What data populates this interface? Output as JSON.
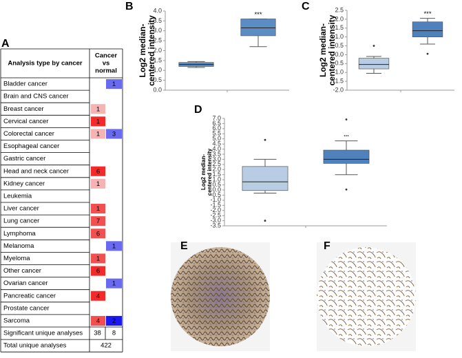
{
  "panel_labels": [
    "A",
    "B",
    "C",
    "D",
    "E",
    "F"
  ],
  "table": {
    "header": {
      "title": "Analysis type by cancer",
      "column": [
        "Cancer",
        "vs",
        "normal"
      ]
    },
    "rows": [
      {
        "name": "Bladder cancer",
        "up": null,
        "down": {
          "value": 1,
          "color": "#6a6af0"
        }
      },
      {
        "name": "Brain and CNS cancer",
        "up": null,
        "down": null
      },
      {
        "name": "Breast cancer",
        "up": {
          "value": 1,
          "color": "#f6b3b3"
        },
        "down": null
      },
      {
        "name": "Cervical cancer",
        "up": {
          "value": 1,
          "color": "#f42a2a"
        },
        "down": null
      },
      {
        "name": "Colorectal cancer",
        "up": {
          "value": 1,
          "color": "#f6b3b3"
        },
        "down": {
          "value": 3,
          "color": "#6a6af0"
        }
      },
      {
        "name": "Esophageal cancer",
        "up": null,
        "down": null
      },
      {
        "name": "Gastric cancer",
        "up": null,
        "down": null
      },
      {
        "name": "Head and neck cancer",
        "up": {
          "value": 6,
          "color": "#f42a2a"
        },
        "down": null
      },
      {
        "name": "Kidney cancer",
        "up": {
          "value": 1,
          "color": "#f6b3b3"
        },
        "down": null
      },
      {
        "name": "Leukemia",
        "up": null,
        "down": null
      },
      {
        "name": "Liver cancer",
        "up": {
          "value": 1,
          "color": "#f25050"
        },
        "down": null
      },
      {
        "name": "Lung cancer",
        "up": {
          "value": 7,
          "color": "#f25050"
        },
        "down": null
      },
      {
        "name": "Lymphoma",
        "up": {
          "value": 6,
          "color": "#f25050"
        },
        "down": null
      },
      {
        "name": "Melanoma",
        "up": null,
        "down": {
          "value": 1,
          "color": "#6a6af0"
        }
      },
      {
        "name": "Myeloma",
        "up": {
          "value": 1,
          "color": "#f25050"
        },
        "down": null
      },
      {
        "name": "Other cancer",
        "up": {
          "value": 6,
          "color": "#f42a2a"
        },
        "down": null
      },
      {
        "name": "Ovarian cancer",
        "up": null,
        "down": {
          "value": 1,
          "color": "#6a6af0"
        }
      },
      {
        "name": "Pancreatic cancer",
        "up": {
          "value": 4,
          "color": "#f42a2a"
        },
        "down": null
      },
      {
        "name": "Prostate cancer",
        "up": null,
        "down": null
      },
      {
        "name": "Sarcoma",
        "up": {
          "value": 4,
          "color": "#f25050"
        },
        "down": {
          "value": 2,
          "color": "#1a1af0"
        }
      }
    ],
    "significant": {
      "name": "Significant unique analyses",
      "up": 38,
      "down": 8
    },
    "total": {
      "name": "Total unique analyses",
      "value": 422
    }
  },
  "chart_data": [
    {
      "type": "box",
      "ylabel": [
        "Log2 median-",
        "centered intensity"
      ],
      "annotation": "***",
      "ylim": [
        0,
        4
      ],
      "yticks": [
        {
          "value": 0,
          "label": "0.0"
        },
        {
          "value": 0.5,
          "label": "0.5"
        },
        {
          "value": 1,
          "label": "1.0"
        },
        {
          "value": 1.5,
          "label": "1.5"
        },
        {
          "value": 2,
          "label": "2.0"
        },
        {
          "value": 2.5,
          "label": "2.5"
        },
        {
          "value": 3,
          "label": "3.0"
        },
        {
          "value": 3.5,
          "label": "3.5"
        },
        {
          "value": 4,
          "label": "4.0"
        }
      ],
      "boxes": [
        {
          "color": "#5b8cc4",
          "min": 1.15,
          "q1": 1.2,
          "median": 1.3,
          "q3": 1.4,
          "max": 1.45,
          "outliers": []
        },
        {
          "color": "#5b8cc4",
          "min": 2.2,
          "q1": 2.75,
          "median": 3.15,
          "q3": 3.6,
          "max": 3.6,
          "outliers": []
        }
      ]
    },
    {
      "type": "box",
      "ylabel": [
        "Log2 median-",
        "centered intensity"
      ],
      "annotation": "***",
      "ylim": [
        -2,
        2.5
      ],
      "yticks": [
        {
          "value": -2,
          "label": "-2.0"
        },
        {
          "value": -1.5,
          "label": "-1.5"
        },
        {
          "value": -1,
          "label": "-1.0"
        },
        {
          "value": -0.5,
          "label": "-0.5"
        },
        {
          "value": 0,
          "label": "0.0"
        },
        {
          "value": 0.5,
          "label": "0.5"
        },
        {
          "value": 1,
          "label": "1.0"
        },
        {
          "value": 1.5,
          "label": "1.5"
        },
        {
          "value": 2,
          "label": "2.0"
        },
        {
          "value": 2.5,
          "label": "2.5"
        }
      ],
      "boxes": [
        {
          "color": "#b8cce4",
          "min": -1.05,
          "q1": -0.8,
          "median": -0.55,
          "q3": -0.2,
          "max": -0.1,
          "outliers": [
            0.5
          ]
        },
        {
          "color": "#4f81bd",
          "min": 0.6,
          "q1": 1.0,
          "median": 1.35,
          "q3": 1.85,
          "max": 2.05,
          "outliers": [
            0.05
          ]
        }
      ]
    },
    {
      "type": "box",
      "ylabel": [
        "Log2 median-",
        "centered intensity"
      ],
      "annotation": "***",
      "ylim": [
        -3.5,
        7
      ],
      "yticks": [
        {
          "value": -3.5,
          "label": "-3.5"
        },
        {
          "value": -3,
          "label": "-3.0"
        },
        {
          "value": -2.5,
          "label": "-2.5"
        },
        {
          "value": -2,
          "label": "-2.0"
        },
        {
          "value": -1.5,
          "label": "-1.5"
        },
        {
          "value": -1,
          "label": "-1.0"
        },
        {
          "value": -0.5,
          "label": "-0.5"
        },
        {
          "value": 0,
          "label": "0.0"
        },
        {
          "value": 0.5,
          "label": "0.5"
        },
        {
          "value": 1,
          "label": "1.0"
        },
        {
          "value": 1.5,
          "label": "1.5"
        },
        {
          "value": 2,
          "label": "2.0"
        },
        {
          "value": 2.5,
          "label": "2.5"
        },
        {
          "value": 3,
          "label": "3.0"
        },
        {
          "value": 3.5,
          "label": "3.5"
        },
        {
          "value": 4,
          "label": "4.0"
        },
        {
          "value": 4.5,
          "label": "4.5"
        },
        {
          "value": 5,
          "label": "5.0"
        },
        {
          "value": 5.5,
          "label": "5.5"
        },
        {
          "value": 6,
          "label": "6.0"
        },
        {
          "value": 6.5,
          "label": "6.5"
        },
        {
          "value": 7,
          "label": "7.0"
        }
      ],
      "boxes": [
        {
          "color": "#b8cce4",
          "min": -0.3,
          "q1": -0.05,
          "median": 0.8,
          "q3": 2.3,
          "max": 3.0,
          "outliers": [
            4.9,
            -3.0
          ]
        },
        {
          "color": "#4f81bd",
          "min": 1.5,
          "q1": 2.6,
          "median": 3.0,
          "q3": 3.9,
          "max": 4.8,
          "outliers": [
            6.9,
            0.05
          ]
        }
      ]
    }
  ]
}
